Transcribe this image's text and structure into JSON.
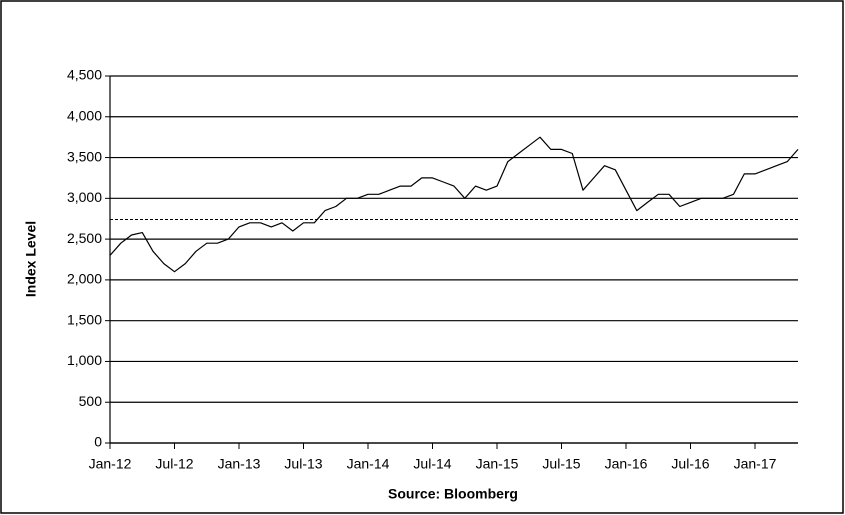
{
  "chart_data": {
    "type": "line",
    "ylabel": "Index Level",
    "source": "Source:  Bloomberg",
    "categories": [
      "Jan-12",
      null,
      null,
      null,
      null,
      null,
      "Jul-12",
      null,
      null,
      null,
      null,
      null,
      "Jan-13",
      null,
      null,
      null,
      null,
      null,
      "Jul-13",
      null,
      null,
      null,
      null,
      null,
      "Jan-14",
      null,
      null,
      null,
      null,
      null,
      "Jul-14",
      null,
      null,
      null,
      null,
      null,
      "Jan-15",
      null,
      null,
      null,
      null,
      null,
      "Jul-15",
      null,
      null,
      null,
      null,
      null,
      "Jan-16",
      null,
      null,
      null,
      null,
      null,
      "Jul-16",
      null,
      null,
      null,
      null,
      null,
      "Jan-17",
      null,
      null,
      null,
      null
    ],
    "series": [
      {
        "color": "#000000",
        "values": [
          2300,
          2450,
          2550,
          2580,
          2350,
          2200,
          2100,
          2200,
          2350,
          2450,
          2450,
          2500,
          2650,
          2700,
          2700,
          2650,
          2700,
          2600,
          2700,
          2700,
          2850,
          2900,
          3000,
          3000,
          3050,
          3050,
          3100,
          3150,
          3150,
          3250,
          3250,
          3200,
          3150,
          3000,
          3150,
          3100,
          3150,
          3450,
          3550,
          3650,
          3750,
          3600,
          3600,
          3550,
          3100,
          3250,
          3400,
          3350,
          3100,
          2850,
          2950,
          3050,
          3050,
          2900,
          2950,
          3000,
          3000,
          3000,
          3050,
          3300,
          3300,
          3350,
          3400,
          3450,
          3600
        ]
      }
    ],
    "reference_line": 2740,
    "ylim": [
      0,
      4500
    ],
    "yticks": [
      0,
      500,
      {
        "value": 1000,
        "label": "1,000"
      },
      {
        "value": 1500,
        "label": "1,500"
      },
      {
        "value": 2000,
        "label": "2,000"
      },
      {
        "value": 2500,
        "label": "2,500"
      },
      {
        "value": 3000,
        "label": "3,000"
      },
      {
        "value": 3500,
        "label": "3,500"
      },
      {
        "value": 4000,
        "label": "4,000"
      },
      {
        "value": 4500,
        "label": "4,500"
      }
    ],
    "grid": true
  }
}
